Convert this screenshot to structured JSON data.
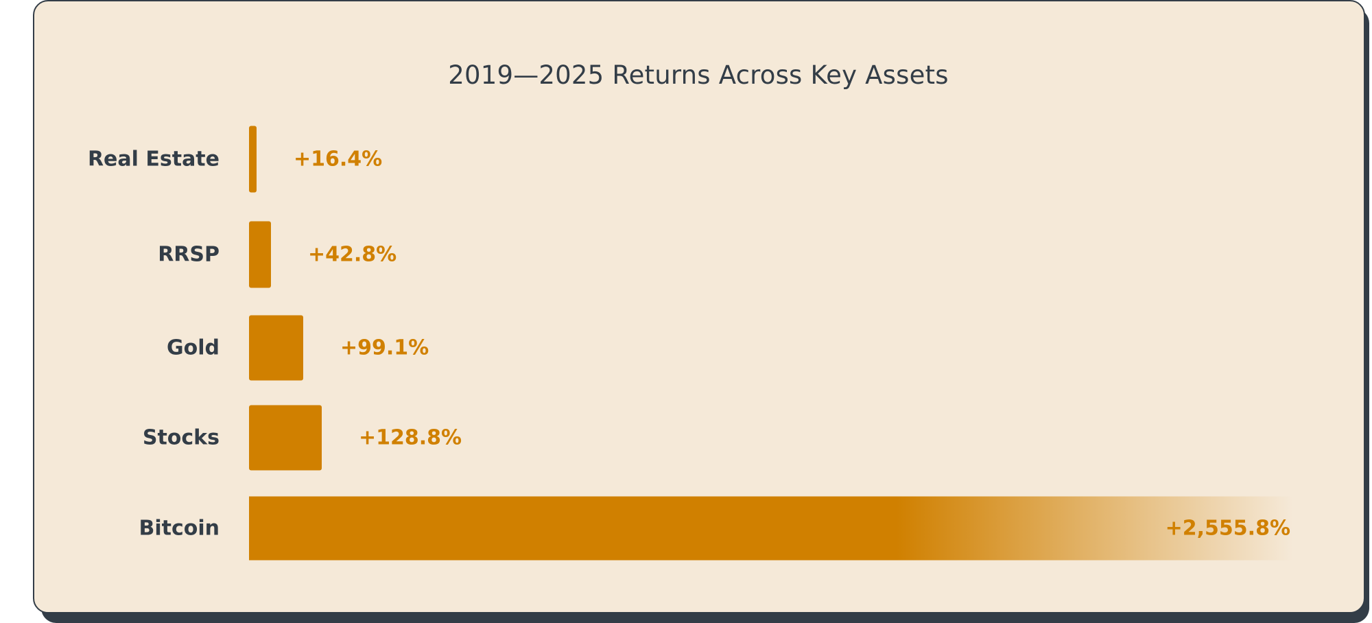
{
  "colors": {
    "bar": "#d08000",
    "value_text": "#d08000",
    "label_text": "#333d47",
    "card_background": "#f5e9d8",
    "card_border": "#333d47"
  },
  "chart_data": {
    "type": "bar",
    "orientation": "horizontal",
    "title": "2019—2025 Returns Across Key Assets",
    "xlabel": "",
    "ylabel": "",
    "unit": "%",
    "grid": false,
    "axes_visible": false,
    "categories": [
      "Real Estate",
      "RRSP",
      "Gold",
      "Stocks",
      "Bitcoin"
    ],
    "values": [
      16.4,
      42.8,
      99.1,
      128.8,
      2555.8
    ],
    "value_labels": [
      "+16.4%",
      "+42.8%",
      "+99.1%",
      "+128.8%",
      "+2,555.8%"
    ],
    "xlim": [
      0,
      2555.8
    ],
    "last_bar_fades_out": true
  }
}
